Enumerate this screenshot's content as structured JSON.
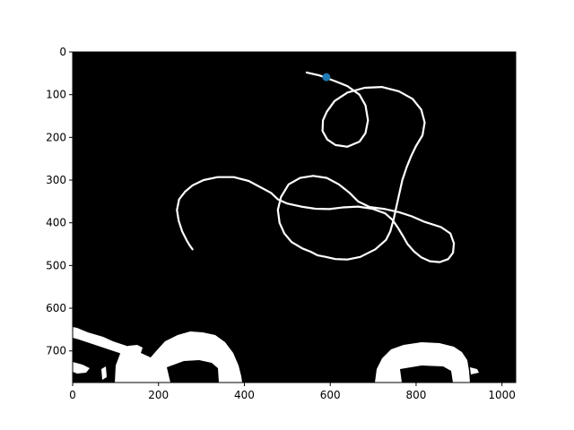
{
  "chart_data": {
    "type": "scatter",
    "title": "",
    "xlabel": "",
    "ylabel": "",
    "background": "image",
    "image_description": "binary black-and-white mask: a thin white looping curve on black, with white blobs along the bottom edge",
    "xlim": [
      0,
      1032
    ],
    "ylim": [
      774,
      0
    ],
    "y_inverted": true,
    "grid": false,
    "x_ticks": [
      0,
      200,
      400,
      600,
      800,
      1000
    ],
    "y_ticks": [
      0,
      100,
      200,
      300,
      400,
      500,
      600,
      700
    ],
    "points": [
      {
        "x": 591,
        "y": 59,
        "color": "#1f77b4"
      }
    ],
    "curve": [
      [
        545,
        48
      ],
      [
        575,
        55
      ],
      [
        610,
        68
      ],
      [
        640,
        80
      ],
      [
        668,
        100
      ],
      [
        682,
        125
      ],
      [
        688,
        160
      ],
      [
        682,
        190
      ],
      [
        668,
        210
      ],
      [
        640,
        222
      ],
      [
        612,
        218
      ],
      [
        593,
        205
      ],
      [
        582,
        185
      ],
      [
        583,
        160
      ],
      [
        592,
        140
      ],
      [
        610,
        115
      ],
      [
        640,
        95
      ],
      [
        680,
        84
      ],
      [
        720,
        82
      ],
      [
        760,
        92
      ],
      [
        792,
        110
      ],
      [
        812,
        135
      ],
      [
        820,
        165
      ],
      [
        815,
        195
      ],
      [
        800,
        220
      ],
      [
        788,
        245
      ],
      [
        778,
        270
      ],
      [
        768,
        300
      ],
      [
        758,
        345
      ],
      [
        748,
        390
      ],
      [
        740,
        420
      ],
      [
        730,
        440
      ],
      [
        705,
        462
      ],
      [
        670,
        480
      ],
      [
        640,
        486
      ],
      [
        612,
        485
      ],
      [
        590,
        480
      ],
      [
        570,
        476
      ],
      [
        555,
        468
      ],
      [
        535,
        460
      ],
      [
        510,
        445
      ],
      [
        493,
        425
      ],
      [
        482,
        400
      ],
      [
        478,
        370
      ],
      [
        485,
        340
      ],
      [
        503,
        310
      ],
      [
        530,
        295
      ],
      [
        560,
        290
      ],
      [
        592,
        295
      ],
      [
        620,
        310
      ],
      [
        645,
        330
      ],
      [
        665,
        350
      ],
      [
        692,
        363
      ],
      [
        728,
        368
      ],
      [
        760,
        375
      ],
      [
        790,
        385
      ],
      [
        820,
        398
      ],
      [
        858,
        410
      ],
      [
        880,
        425
      ],
      [
        888,
        448
      ],
      [
        886,
        470
      ],
      [
        875,
        485
      ],
      [
        855,
        492
      ],
      [
        832,
        490
      ],
      [
        812,
        481
      ],
      [
        795,
        467
      ],
      [
        780,
        450
      ],
      [
        770,
        432
      ],
      [
        758,
        412
      ],
      [
        745,
        393
      ],
      [
        728,
        378
      ],
      [
        698,
        367
      ],
      [
        665,
        362
      ],
      [
        630,
        364
      ],
      [
        598,
        368
      ],
      [
        565,
        367
      ],
      [
        532,
        362
      ],
      [
        500,
        355
      ],
      [
        478,
        345
      ],
      [
        462,
        330
      ],
      [
        440,
        318
      ],
      [
        410,
        302
      ],
      [
        375,
        293
      ],
      [
        338,
        293
      ],
      [
        305,
        300
      ],
      [
        280,
        312
      ],
      [
        262,
        327
      ],
      [
        248,
        345
      ],
      [
        243,
        370
      ],
      [
        247,
        395
      ],
      [
        255,
        420
      ],
      [
        265,
        440
      ],
      [
        272,
        452
      ],
      [
        279,
        462
      ]
    ]
  },
  "axes": {
    "frame_color": "#000000",
    "plot_bg": "#000000",
    "curve_color": "#ffffff",
    "marker_color": "#1f77b4"
  }
}
